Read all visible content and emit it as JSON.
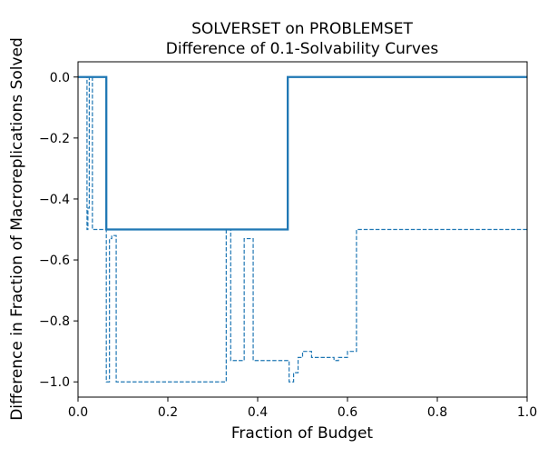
{
  "chart_data": {
    "type": "line",
    "title": [
      "SOLVERSET on PROBLEMSET",
      "Difference of 0.1-Solvability Curves"
    ],
    "xlabel": "Fraction of Budget",
    "ylabel": "Difference in Fraction of Macroreplications Solved",
    "xlim": [
      0.0,
      1.0
    ],
    "ylim": [
      -1.05,
      0.05
    ],
    "xticks": [
      "0.0",
      "0.2",
      "0.4",
      "0.6",
      "0.8",
      "1.0"
    ],
    "yticks": [
      "0.0",
      "−0.2",
      "−0.4",
      "−0.6",
      "−0.8",
      "−1.0"
    ],
    "grid": false,
    "color": "#1f77b4",
    "series": [
      {
        "style": "solid",
        "x": [
          0.0,
          0.063,
          0.063,
          0.467,
          0.467,
          1.0
        ],
        "y": [
          0.0,
          0.0,
          -0.5,
          -0.5,
          0.0,
          0.0
        ]
      },
      {
        "style": "dashed",
        "x": [
          0.0,
          0.02,
          0.02,
          0.022,
          0.022,
          0.025,
          0.025,
          0.032,
          0.032,
          0.063,
          0.063,
          0.07,
          0.07,
          0.075,
          0.075,
          0.085,
          0.085,
          0.33,
          0.33,
          0.34,
          0.34,
          0.37,
          0.37,
          0.39,
          0.39,
          0.47,
          0.47,
          0.48,
          0.48,
          0.49,
          0.49,
          0.5,
          0.5,
          0.52,
          0.52,
          0.57,
          0.57,
          0.58,
          0.58,
          0.6,
          0.6,
          0.62,
          0.62,
          1.0
        ],
        "y": [
          0.0,
          0.0,
          -0.5,
          -0.5,
          -0.43,
          -0.43,
          0.0,
          0.0,
          -0.5,
          -0.5,
          -1.0,
          -1.0,
          -0.53,
          -0.53,
          -0.52,
          -0.52,
          -1.0,
          -1.0,
          -0.5,
          -0.5,
          -0.93,
          -0.93,
          -0.53,
          -0.53,
          -0.93,
          -0.93,
          -1.0,
          -1.0,
          -0.97,
          -0.97,
          -0.92,
          -0.92,
          -0.9,
          -0.9,
          -0.92,
          -0.92,
          -0.93,
          -0.93,
          -0.92,
          -0.92,
          -0.9,
          -0.9,
          -0.5,
          -0.5
        ]
      }
    ]
  }
}
